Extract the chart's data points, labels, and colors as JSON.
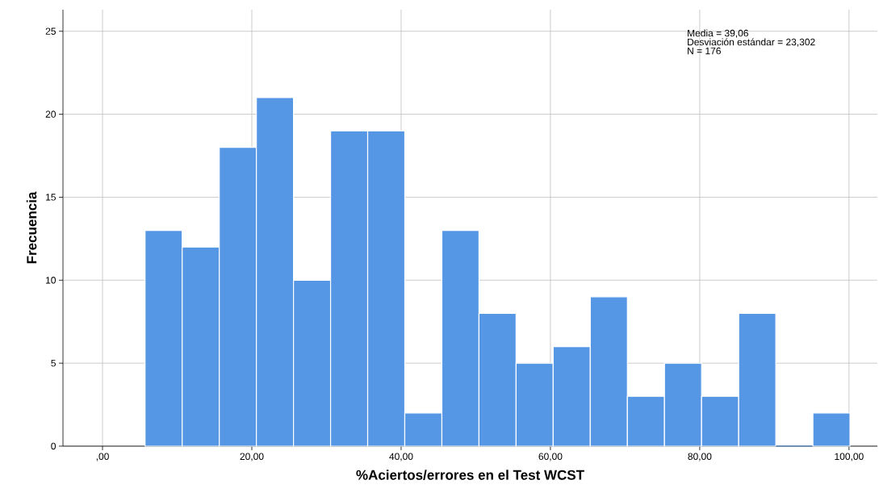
{
  "chart_data": {
    "type": "histogram",
    "xlabel": "%Aciertos/errores en el Test WCST",
    "ylabel": "Frecuencia",
    "bins": [
      5.7,
      10.67,
      15.64,
      20.61,
      25.58,
      30.55,
      35.52,
      40.49,
      45.46,
      50.43,
      55.4,
      60.37,
      65.34,
      70.31,
      75.28,
      80.25,
      85.22,
      90.19,
      95.16,
      100.13
    ],
    "values": [
      13,
      12,
      18,
      21,
      10,
      19,
      19,
      2,
      13,
      8,
      5,
      6,
      9,
      3,
      5,
      3,
      8,
      0,
      2
    ],
    "color": "#5596e5",
    "xlim": [
      -5.3,
      103.8
    ],
    "ylim": [
      0,
      26.3
    ],
    "xticks": [
      {
        "value": 0,
        "label": ",00"
      },
      {
        "value": 20,
        "label": "20,00"
      },
      {
        "value": 40,
        "label": "40,00"
      },
      {
        "value": 60,
        "label": "60,00"
      },
      {
        "value": 80,
        "label": "80,00"
      },
      {
        "value": 100,
        "label": "100,00"
      }
    ],
    "yticks": [
      0,
      5,
      10,
      15,
      20,
      25
    ],
    "grid": true,
    "annotations": [
      "Media = 39,06",
      "Desviación estándar = 23,302",
      "N = 176"
    ]
  }
}
